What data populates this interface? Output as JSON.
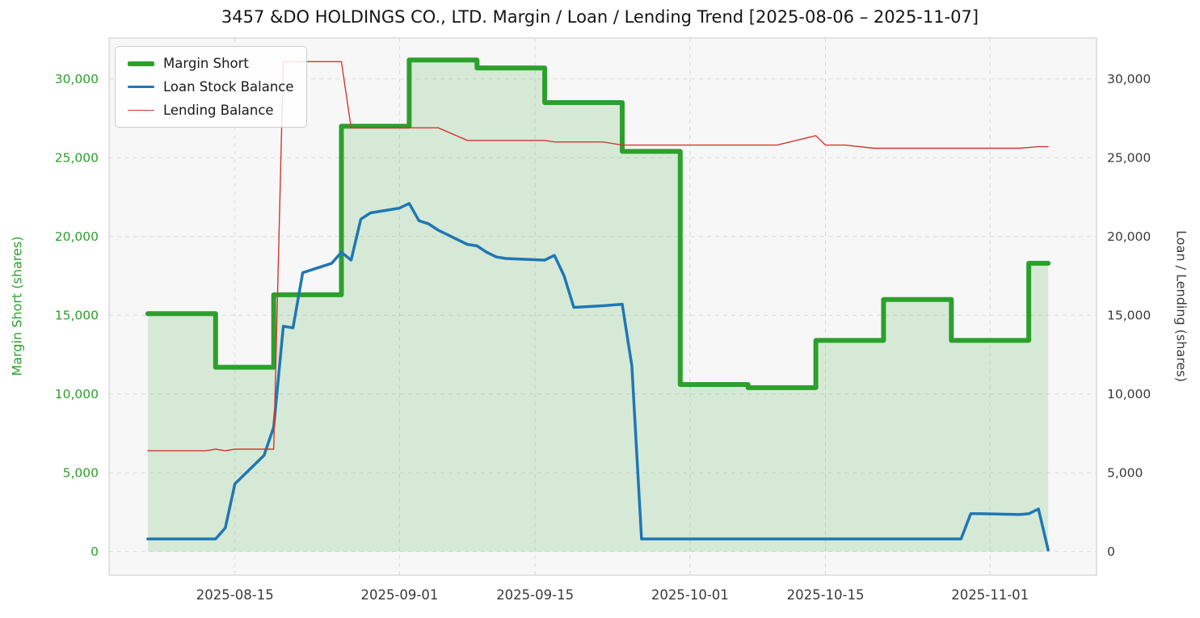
{
  "chart_data": {
    "type": "line",
    "title": "3457 &DO HOLDINGS CO., LTD. Margin / Loan / Lending Trend [2025-08-06 – 2025-11-07]",
    "ylabel_left": "Margin Short (shares)",
    "ylabel_right": "Loan / Lending (shares)",
    "date_range": [
      "2025-08-06",
      "2025-11-07"
    ],
    "xlim": [
      "2025-08-02",
      "2025-11-12"
    ],
    "ylim": [
      -1500,
      32600
    ],
    "yticks": [
      0,
      5000,
      10000,
      15000,
      20000,
      25000,
      30000
    ],
    "ytick_labels": [
      "0",
      "5,000",
      "10,000",
      "15,000",
      "20,000",
      "25,000",
      "30,000"
    ],
    "xticks": [
      "2025-08-15",
      "2025-09-01",
      "2025-09-15",
      "2025-10-01",
      "2025-10-15",
      "2025-11-01"
    ],
    "grid": true,
    "legend": {
      "position": "upper-left",
      "entries": [
        "Margin Short",
        "Loan Stock Balance",
        "Lending Balance"
      ]
    },
    "colors": {
      "margin_short": "#2ca02c",
      "margin_short_fill": "rgba(44,160,44,0.16)",
      "loan_stock_balance": "#1f77b4",
      "lending_balance": "#d03830",
      "plot_bg": "#f7f7f7",
      "grid": "#d9d9d9",
      "plot_border": "#d2d2d2",
      "left_axis_text": "#2ca02c",
      "right_axis_text": "#3a3a3a",
      "x_axis_text": "#3a3a3a",
      "title_text": "#151515"
    },
    "series": [
      {
        "name": "Margin Short",
        "axis": "left",
        "color": "#2ca02c",
        "width": 6,
        "fill": "rgba(44,160,44,0.16)",
        "step": true,
        "points": [
          [
            "2025-08-06",
            15100
          ],
          [
            "2025-08-13",
            15100
          ],
          [
            "2025-08-13",
            11700
          ],
          [
            "2025-08-19",
            11700
          ],
          [
            "2025-08-19",
            16300
          ],
          [
            "2025-08-26",
            16300
          ],
          [
            "2025-08-26",
            27000
          ],
          [
            "2025-09-02",
            27000
          ],
          [
            "2025-09-02",
            31200
          ],
          [
            "2025-09-09",
            31200
          ],
          [
            "2025-09-09",
            30700
          ],
          [
            "2025-09-16",
            30700
          ],
          [
            "2025-09-16",
            28500
          ],
          [
            "2025-09-24",
            28500
          ],
          [
            "2025-09-24",
            25400
          ],
          [
            "2025-09-30",
            25400
          ],
          [
            "2025-09-30",
            10600
          ],
          [
            "2025-10-07",
            10600
          ],
          [
            "2025-10-07",
            10400
          ],
          [
            "2025-10-14",
            10400
          ],
          [
            "2025-10-14",
            13400
          ],
          [
            "2025-10-21",
            13400
          ],
          [
            "2025-10-21",
            16000
          ],
          [
            "2025-10-28",
            16000
          ],
          [
            "2025-10-28",
            13400
          ],
          [
            "2025-11-05",
            13400
          ],
          [
            "2025-11-05",
            18300
          ],
          [
            "2025-11-07",
            18300
          ]
        ]
      },
      {
        "name": "Loan Stock Balance",
        "axis": "right",
        "color": "#1f77b4",
        "width": 3.5,
        "fill": null,
        "step": false,
        "points": [
          [
            "2025-08-06",
            800
          ],
          [
            "2025-08-07",
            800
          ],
          [
            "2025-08-08",
            800
          ],
          [
            "2025-08-12",
            800
          ],
          [
            "2025-08-13",
            800
          ],
          [
            "2025-08-14",
            1500
          ],
          [
            "2025-08-15",
            4300
          ],
          [
            "2025-08-18",
            6100
          ],
          [
            "2025-08-19",
            7900
          ],
          [
            "2025-08-20",
            14300
          ],
          [
            "2025-08-21",
            14200
          ],
          [
            "2025-08-22",
            17700
          ],
          [
            "2025-08-25",
            18300
          ],
          [
            "2025-08-26",
            19000
          ],
          [
            "2025-08-27",
            18500
          ],
          [
            "2025-08-28",
            21100
          ],
          [
            "2025-08-29",
            21500
          ],
          [
            "2025-09-01",
            21800
          ],
          [
            "2025-09-02",
            22100
          ],
          [
            "2025-09-03",
            21000
          ],
          [
            "2025-09-04",
            20800
          ],
          [
            "2025-09-05",
            20400
          ],
          [
            "2025-09-08",
            19500
          ],
          [
            "2025-09-09",
            19400
          ],
          [
            "2025-09-10",
            19000
          ],
          [
            "2025-09-11",
            18700
          ],
          [
            "2025-09-12",
            18600
          ],
          [
            "2025-09-16",
            18500
          ],
          [
            "2025-09-17",
            18800
          ],
          [
            "2025-09-18",
            17500
          ],
          [
            "2025-09-19",
            15500
          ],
          [
            "2025-09-22",
            15600
          ],
          [
            "2025-09-24",
            15700
          ],
          [
            "2025-09-25",
            11800
          ],
          [
            "2025-09-26",
            800
          ],
          [
            "2025-09-30",
            800
          ],
          [
            "2025-10-07",
            800
          ],
          [
            "2025-10-14",
            800
          ],
          [
            "2025-10-21",
            800
          ],
          [
            "2025-10-28",
            800
          ],
          [
            "2025-10-29",
            800
          ],
          [
            "2025-10-30",
            2400
          ],
          [
            "2025-10-31",
            2400
          ],
          [
            "2025-11-04",
            2350
          ],
          [
            "2025-11-05",
            2400
          ],
          [
            "2025-11-06",
            2700
          ],
          [
            "2025-11-07",
            100
          ]
        ]
      },
      {
        "name": "Lending Balance",
        "axis": "right",
        "color": "#d03830",
        "width": 1.4,
        "fill": null,
        "step": false,
        "points": [
          [
            "2025-08-06",
            6400
          ],
          [
            "2025-08-08",
            6400
          ],
          [
            "2025-08-12",
            6400
          ],
          [
            "2025-08-13",
            6500
          ],
          [
            "2025-08-14",
            6400
          ],
          [
            "2025-08-15",
            6500
          ],
          [
            "2025-08-18",
            6500
          ],
          [
            "2025-08-19",
            6500
          ],
          [
            "2025-08-20",
            31100
          ],
          [
            "2025-08-22",
            31100
          ],
          [
            "2025-08-26",
            31100
          ],
          [
            "2025-08-27",
            26900
          ],
          [
            "2025-09-01",
            26900
          ],
          [
            "2025-09-05",
            26900
          ],
          [
            "2025-09-08",
            26100
          ],
          [
            "2025-09-12",
            26100
          ],
          [
            "2025-09-16",
            26100
          ],
          [
            "2025-09-17",
            26000
          ],
          [
            "2025-09-22",
            26000
          ],
          [
            "2025-09-24",
            25800
          ],
          [
            "2025-09-30",
            25800
          ],
          [
            "2025-10-08",
            25800
          ],
          [
            "2025-10-10",
            25800
          ],
          [
            "2025-10-14",
            26400
          ],
          [
            "2025-10-15",
            25800
          ],
          [
            "2025-10-17",
            25800
          ],
          [
            "2025-10-20",
            25600
          ],
          [
            "2025-10-24",
            25600
          ],
          [
            "2025-10-28",
            25600
          ],
          [
            "2025-10-31",
            25600
          ],
          [
            "2025-11-04",
            25600
          ],
          [
            "2025-11-06",
            25700
          ],
          [
            "2025-11-07",
            25700
          ]
        ]
      }
    ]
  }
}
